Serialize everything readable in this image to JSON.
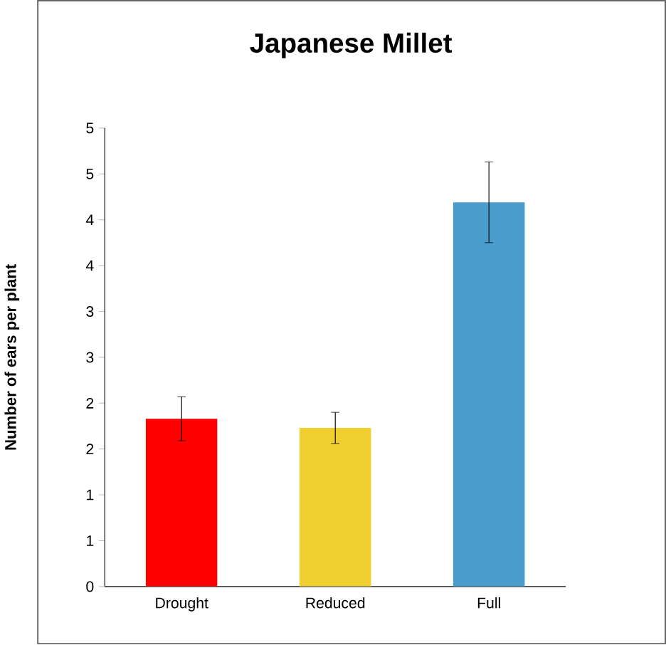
{
  "chart_data": {
    "type": "bar",
    "title": "Japanese Millet",
    "ylabel": "Number of ears per plant",
    "categories": [
      "Drought",
      "Reduced",
      "Full"
    ],
    "values": [
      1.83,
      1.73,
      4.19
    ],
    "errors": [
      0.24,
      0.17,
      0.44
    ],
    "colors": [
      "#ff0000",
      "#f0d030",
      "#4a9ccc"
    ],
    "ylim": [
      0,
      5
    ],
    "yticks": [
      0,
      {
        "value": 0.5,
        "label": "1"
      },
      {
        "value": 1,
        "label": "1"
      },
      {
        "value": 1.5,
        "label": "2"
      },
      {
        "value": 2,
        "label": "2"
      },
      {
        "value": 2.5,
        "label": "3"
      },
      {
        "value": 3,
        "label": "3"
      },
      {
        "value": 3.5,
        "label": "4"
      },
      {
        "value": 4,
        "label": "4"
      },
      {
        "value": 4.5,
        "label": "5"
      },
      {
        "value": 5,
        "label": "5"
      }
    ]
  }
}
